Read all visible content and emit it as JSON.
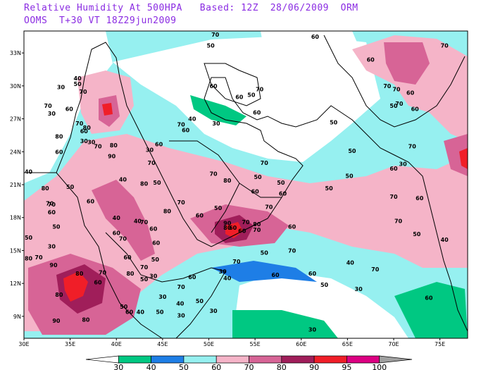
{
  "title": {
    "line1": "Relative Humidity At 500HPA   Based: 12Z  28/06/2009  ORM",
    "line2": "OOMS  T+30 VT 18Z29jun2009"
  },
  "axes": {
    "lon_labels": [
      "30E",
      "35E",
      "40E",
      "45E",
      "50E",
      "55E",
      "60E",
      "65E",
      "70E",
      "75E"
    ],
    "lat_labels": [
      "33N",
      "30N",
      "27N",
      "24N",
      "21N",
      "18N",
      "15N",
      "12N",
      "9N"
    ]
  },
  "colorbar": {
    "labels": [
      "30",
      "40",
      "50",
      "60",
      "70",
      "80",
      "90",
      "95",
      "100"
    ],
    "colors": [
      "#ffffff",
      "#00c882",
      "#1e7ee6",
      "#96f0f0",
      "#f5b4c8",
      "#d76496",
      "#a01e5a",
      "#f01e28",
      "#dc0082",
      "#a0a0a0"
    ]
  },
  "contour_labels": [
    {
      "text": "70",
      "lon": 75.5,
      "lat": 33.5
    },
    {
      "text": "60",
      "lon": 61.5,
      "lat": 34.3
    },
    {
      "text": "60",
      "lon": 67.5,
      "lat": 32.2
    },
    {
      "text": "70",
      "lon": 69.3,
      "lat": 29.8
    },
    {
      "text": "70",
      "lon": 70.3,
      "lat": 29.5
    },
    {
      "text": "60",
      "lon": 71.8,
      "lat": 29.2
    },
    {
      "text": "50",
      "lon": 70,
      "lat": 28.0
    },
    {
      "text": "70",
      "lon": 70.6,
      "lat": 28.2
    },
    {
      "text": "60",
      "lon": 72.3,
      "lat": 27.7
    },
    {
      "text": "50",
      "lon": 63.5,
      "lat": 26.5
    },
    {
      "text": "50",
      "lon": 65.5,
      "lat": 23.9
    },
    {
      "text": "70",
      "lon": 72.0,
      "lat": 24.3
    },
    {
      "text": "30",
      "lon": 71.0,
      "lat": 22.7
    },
    {
      "text": "60",
      "lon": 70.0,
      "lat": 22.3
    },
    {
      "text": "50",
      "lon": 65.2,
      "lat": 21.6
    },
    {
      "text": "50",
      "lon": 63.0,
      "lat": 20.5
    },
    {
      "text": "70",
      "lon": 70.0,
      "lat": 19.7
    },
    {
      "text": "60",
      "lon": 72.8,
      "lat": 19.6
    },
    {
      "text": "70",
      "lon": 70.5,
      "lat": 17.5
    },
    {
      "text": "40",
      "lon": 75.5,
      "lat": 15.8
    },
    {
      "text": "50",
      "lon": 72.5,
      "lat": 16.3
    },
    {
      "text": "40",
      "lon": 65.3,
      "lat": 13.7
    },
    {
      "text": "70",
      "lon": 68.0,
      "lat": 13.1
    },
    {
      "text": "30",
      "lon": 66.2,
      "lat": 11.3
    },
    {
      "text": "60",
      "lon": 73.8,
      "lat": 10.5
    },
    {
      "text": "50",
      "lon": 56.0,
      "lat": 14.6
    },
    {
      "text": "70",
      "lon": 59.0,
      "lat": 14.8
    },
    {
      "text": "60",
      "lon": 57.2,
      "lat": 12.6
    },
    {
      "text": "60",
      "lon": 61.2,
      "lat": 12.7
    },
    {
      "text": "50",
      "lon": 62.5,
      "lat": 11.7
    },
    {
      "text": "40",
      "lon": 52.0,
      "lat": 12.3
    },
    {
      "text": "30",
      "lon": 51.5,
      "lat": 12.9
    },
    {
      "text": "70",
      "lon": 53.0,
      "lat": 13.8
    },
    {
      "text": "60",
      "lon": 53.6,
      "lat": 16.6
    },
    {
      "text": "60",
      "lon": 52.6,
      "lat": 16.9
    },
    {
      "text": "70",
      "lon": 54.0,
      "lat": 17.4
    },
    {
      "text": "90",
      "lon": 52.0,
      "lat": 17.3
    },
    {
      "text": "80",
      "lon": 52.0,
      "lat": 16.9
    },
    {
      "text": "80",
      "lon": 55.2,
      "lat": 17.2
    },
    {
      "text": "70",
      "lon": 55.2,
      "lat": 16.7
    },
    {
      "text": "60",
      "lon": 59.0,
      "lat": 17.0
    },
    {
      "text": "60",
      "lon": 58.0,
      "lat": 20.0
    },
    {
      "text": "70",
      "lon": 56.5,
      "lat": 18.8
    },
    {
      "text": "50",
      "lon": 55.3,
      "lat": 21.5
    },
    {
      "text": "60",
      "lon": 55.0,
      "lat": 20.2
    },
    {
      "text": "70",
      "lon": 50.5,
      "lat": 21.8
    },
    {
      "text": "80",
      "lon": 52.0,
      "lat": 21.2
    },
    {
      "text": "60",
      "lon": 49.0,
      "lat": 18.0
    },
    {
      "text": "50",
      "lon": 51.0,
      "lat": 18.7
    },
    {
      "text": "70",
      "lon": 47.0,
      "lat": 19.2
    },
    {
      "text": "80",
      "lon": 45.5,
      "lat": 18.4
    },
    {
      "text": "60",
      "lon": 44.0,
      "lat": 16.8
    },
    {
      "text": "70",
      "lon": 43.0,
      "lat": 17.4
    },
    {
      "text": "60",
      "lon": 44.3,
      "lat": 15.5
    },
    {
      "text": "40",
      "lon": 42.3,
      "lat": 17.5
    },
    {
      "text": "60",
      "lon": 37.2,
      "lat": 19.3
    },
    {
      "text": "70",
      "lon": 33.0,
      "lat": 19.0
    },
    {
      "text": "50",
      "lon": 33.5,
      "lat": 17.0
    },
    {
      "text": "60",
      "lon": 40.0,
      "lat": 16.4
    },
    {
      "text": "40",
      "lon": 40.0,
      "lat": 17.8
    },
    {
      "text": "70",
      "lon": 40.7,
      "lat": 15.9
    },
    {
      "text": "50",
      "lon": 44.2,
      "lat": 14.0
    },
    {
      "text": "60",
      "lon": 41.2,
      "lat": 14.2
    },
    {
      "text": "80",
      "lon": 41.5,
      "lat": 12.7
    },
    {
      "text": "70",
      "lon": 43.0,
      "lat": 13.3
    },
    {
      "text": "30",
      "lon": 44.0,
      "lat": 12.5
    },
    {
      "text": "50",
      "lon": 43.0,
      "lat": 12.2
    },
    {
      "text": "60",
      "lon": 48.2,
      "lat": 12.4
    },
    {
      "text": "70",
      "lon": 47.0,
      "lat": 11.5
    },
    {
      "text": "40",
      "lon": 46.9,
      "lat": 10.0
    },
    {
      "text": "30",
      "lon": 47.0,
      "lat": 8.9
    },
    {
      "text": "50",
      "lon": 44.7,
      "lat": 9.2
    },
    {
      "text": "40",
      "lon": 42.6,
      "lat": 9.2
    },
    {
      "text": "60",
      "lon": 41.4,
      "lat": 9.2
    },
    {
      "text": "50",
      "lon": 40.8,
      "lat": 9.7
    },
    {
      "text": "30",
      "lon": 45.0,
      "lat": 10.6
    },
    {
      "text": "50",
      "lon": 49.0,
      "lat": 10.2
    },
    {
      "text": "30",
      "lon": 50.5,
      "lat": 9.3
    },
    {
      "text": "30",
      "lon": 61.2,
      "lat": 7.6
    },
    {
      "text": "80",
      "lon": 36.7,
      "lat": 8.5
    },
    {
      "text": "90",
      "lon": 33.5,
      "lat": 8.4
    },
    {
      "text": "60",
      "lon": 38.0,
      "lat": 11.9
    },
    {
      "text": "90",
      "lon": 33.2,
      "lat": 13.5
    },
    {
      "text": "70",
      "lon": 38.5,
      "lat": 12.8
    },
    {
      "text": "80",
      "lon": 36.0,
      "lat": 12.7
    },
    {
      "text": "80",
      "lon": 33.8,
      "lat": 10.8
    },
    {
      "text": "70",
      "lon": 31.6,
      "lat": 14.2
    },
    {
      "text": "80",
      "lon": 30.5,
      "lat": 14.1
    },
    {
      "text": "50",
      "lon": 30.5,
      "lat": 16.0
    },
    {
      "text": "30",
      "lon": 33.0,
      "lat": 15.2
    },
    {
      "text": "40",
      "lon": 30.5,
      "lat": 22.0
    },
    {
      "text": "80",
      "lon": 32.3,
      "lat": 20.5
    },
    {
      "text": "70",
      "lon": 32.8,
      "lat": 19.1
    },
    {
      "text": "60",
      "lon": 33.0,
      "lat": 18.3
    },
    {
      "text": "50",
      "lon": 35.0,
      "lat": 20.6
    },
    {
      "text": "90",
      "lon": 39.5,
      "lat": 23.4
    },
    {
      "text": "70",
      "lon": 38.0,
      "lat": 24.3
    },
    {
      "text": "30",
      "lon": 37.3,
      "lat": 24.7
    },
    {
      "text": "80",
      "lon": 39.7,
      "lat": 24.4
    },
    {
      "text": "60",
      "lon": 44.6,
      "lat": 24.5
    },
    {
      "text": "70",
      "lon": 43.8,
      "lat": 22.8
    },
    {
      "text": "80",
      "lon": 43.0,
      "lat": 20.9
    },
    {
      "text": "50",
      "lon": 44.4,
      "lat": 21.0
    },
    {
      "text": "40",
      "lon": 40.7,
      "lat": 21.3
    },
    {
      "text": "30",
      "lon": 43.6,
      "lat": 24.0
    },
    {
      "text": "70",
      "lon": 36.0,
      "lat": 26.4
    },
    {
      "text": "60",
      "lon": 34.9,
      "lat": 27.7
    },
    {
      "text": "80",
      "lon": 36.8,
      "lat": 26.0
    },
    {
      "text": "70",
      "lon": 32.6,
      "lat": 28.0
    },
    {
      "text": "30",
      "lon": 33.0,
      "lat": 27.3
    },
    {
      "text": "30",
      "lon": 34.0,
      "lat": 29.7
    },
    {
      "text": "40",
      "lon": 35.8,
      "lat": 30.5
    },
    {
      "text": "50",
      "lon": 35.8,
      "lat": 30.0
    },
    {
      "text": "70",
      "lon": 36.4,
      "lat": 29.3
    },
    {
      "text": "80",
      "lon": 33.8,
      "lat": 25.2
    },
    {
      "text": "60",
      "lon": 33.8,
      "lat": 23.8
    },
    {
      "text": "60",
      "lon": 36.5,
      "lat": 25.7
    },
    {
      "text": "30",
      "lon": 36.5,
      "lat": 24.8
    },
    {
      "text": "70",
      "lon": 47.0,
      "lat": 26.3
    },
    {
      "text": "60",
      "lon": 47.5,
      "lat": 25.8
    },
    {
      "text": "40",
      "lon": 48.2,
      "lat": 26.8
    },
    {
      "text": "30",
      "lon": 50.8,
      "lat": 26.4
    },
    {
      "text": "60",
      "lon": 53.3,
      "lat": 28.8
    },
    {
      "text": "60",
      "lon": 50.5,
      "lat": 29.8
    },
    {
      "text": "50",
      "lon": 50.2,
      "lat": 33.5
    },
    {
      "text": "70",
      "lon": 50.7,
      "lat": 34.5
    },
    {
      "text": "70",
      "lon": 55.5,
      "lat": 29.5
    },
    {
      "text": "50",
      "lon": 54.6,
      "lat": 29.0
    },
    {
      "text": "60",
      "lon": 55.2,
      "lat": 27.4
    },
    {
      "text": "70",
      "lon": 56.0,
      "lat": 22.8
    },
    {
      "text": "50",
      "lon": 57.8,
      "lat": 21.0
    }
  ]
}
